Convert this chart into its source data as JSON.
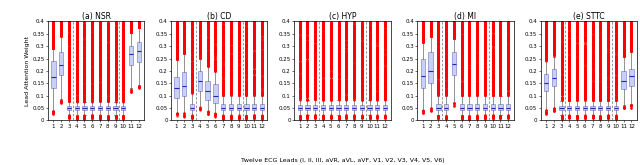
{
  "titles": [
    "(a) NSR",
    "(b) CD",
    "(c) HYP",
    "(d) MI",
    "(e) STTC"
  ],
  "ylabel": "Lead Attention Weight",
  "xlabel": "Twelve ECG Leads (I, II, III, aVR, aVL, aVF, V1, V2, V3, V4, V5, V6)",
  "ylim": [
    0,
    0.4
  ],
  "yticks": [
    0,
    0.05,
    0.1,
    0.15,
    0.2,
    0.25,
    0.3,
    0.35,
    0.4
  ],
  "n_leads": 12,
  "dashed_leads": [
    3,
    9
  ],
  "panels": {
    "NSR": {
      "med": [
        0.175,
        0.225,
        0.052,
        0.052,
        0.052,
        0.052,
        0.052,
        0.052,
        0.052,
        0.052,
        0.27,
        0.28
      ],
      "q1": [
        0.13,
        0.185,
        0.042,
        0.042,
        0.042,
        0.042,
        0.042,
        0.042,
        0.042,
        0.042,
        0.225,
        0.235
      ],
      "q3": [
        0.24,
        0.275,
        0.06,
        0.06,
        0.06,
        0.06,
        0.06,
        0.06,
        0.06,
        0.06,
        0.3,
        0.315
      ],
      "whislo": [
        0.04,
        0.085,
        0.022,
        0.022,
        0.022,
        0.022,
        0.022,
        0.022,
        0.022,
        0.022,
        0.13,
        0.145
      ],
      "whishi": [
        0.29,
        0.34,
        0.075,
        0.075,
        0.075,
        0.075,
        0.075,
        0.075,
        0.075,
        0.075,
        0.355,
        0.375
      ],
      "outlier_density": [
        0.6,
        0.5,
        0.9,
        0.9,
        0.9,
        0.9,
        0.9,
        0.9,
        0.9,
        0.9,
        0.4,
        0.4
      ]
    },
    "CD": {
      "med": [
        0.13,
        0.14,
        0.052,
        0.16,
        0.12,
        0.1,
        0.052,
        0.052,
        0.052,
        0.052,
        0.052,
        0.052
      ],
      "q1": [
        0.09,
        0.1,
        0.042,
        0.12,
        0.082,
        0.072,
        0.042,
        0.042,
        0.042,
        0.042,
        0.042,
        0.042
      ],
      "q3": [
        0.175,
        0.195,
        0.068,
        0.2,
        0.158,
        0.148,
        0.068,
        0.068,
        0.068,
        0.068,
        0.068,
        0.068
      ],
      "whislo": [
        0.03,
        0.03,
        0.022,
        0.055,
        0.038,
        0.03,
        0.022,
        0.022,
        0.022,
        0.022,
        0.022,
        0.022
      ],
      "whishi": [
        0.245,
        0.27,
        0.11,
        0.25,
        0.218,
        0.198,
        0.1,
        0.1,
        0.1,
        0.1,
        0.1,
        0.1
      ],
      "outlier_density": [
        0.5,
        0.5,
        0.8,
        0.4,
        0.5,
        0.5,
        0.8,
        0.8,
        0.8,
        0.8,
        0.8,
        0.8
      ]
    },
    "HYP": {
      "med": [
        0.052,
        0.052,
        0.052,
        0.052,
        0.052,
        0.052,
        0.052,
        0.052,
        0.052,
        0.052,
        0.052,
        0.052
      ],
      "q1": [
        0.042,
        0.042,
        0.042,
        0.042,
        0.042,
        0.042,
        0.042,
        0.042,
        0.042,
        0.042,
        0.042,
        0.042
      ],
      "q3": [
        0.062,
        0.062,
        0.062,
        0.062,
        0.062,
        0.062,
        0.062,
        0.062,
        0.062,
        0.062,
        0.062,
        0.062
      ],
      "whislo": [
        0.022,
        0.022,
        0.022,
        0.022,
        0.022,
        0.022,
        0.022,
        0.022,
        0.022,
        0.022,
        0.022,
        0.022
      ],
      "whishi": [
        0.082,
        0.082,
        0.082,
        0.082,
        0.082,
        0.082,
        0.082,
        0.082,
        0.082,
        0.082,
        0.082,
        0.082
      ],
      "outlier_density": [
        0.9,
        0.9,
        0.9,
        0.9,
        0.9,
        0.9,
        0.9,
        0.9,
        0.9,
        0.9,
        0.9,
        0.9
      ]
    },
    "MI": {
      "med": [
        0.18,
        0.2,
        0.052,
        0.052,
        0.23,
        0.052,
        0.052,
        0.052,
        0.052,
        0.052,
        0.052,
        0.052
      ],
      "q1": [
        0.13,
        0.15,
        0.042,
        0.042,
        0.185,
        0.042,
        0.042,
        0.042,
        0.042,
        0.042,
        0.042,
        0.042
      ],
      "q3": [
        0.248,
        0.278,
        0.068,
        0.068,
        0.278,
        0.068,
        0.068,
        0.068,
        0.068,
        0.068,
        0.068,
        0.068
      ],
      "whislo": [
        0.042,
        0.052,
        0.022,
        0.022,
        0.072,
        0.022,
        0.022,
        0.022,
        0.022,
        0.022,
        0.022,
        0.022
      ],
      "whishi": [
        0.315,
        0.338,
        0.1,
        0.1,
        0.33,
        0.1,
        0.1,
        0.1,
        0.1,
        0.1,
        0.1,
        0.1
      ],
      "outlier_density": [
        0.5,
        0.4,
        0.9,
        0.9,
        0.4,
        0.9,
        0.9,
        0.9,
        0.9,
        0.9,
        0.9,
        0.9
      ]
    },
    "STTC": {
      "med": [
        0.15,
        0.17,
        0.052,
        0.052,
        0.052,
        0.052,
        0.052,
        0.052,
        0.052,
        0.052,
        0.158,
        0.178
      ],
      "q1": [
        0.12,
        0.138,
        0.042,
        0.042,
        0.042,
        0.042,
        0.042,
        0.042,
        0.042,
        0.042,
        0.128,
        0.138
      ],
      "q3": [
        0.188,
        0.208,
        0.06,
        0.06,
        0.06,
        0.06,
        0.06,
        0.06,
        0.06,
        0.06,
        0.198,
        0.208
      ],
      "whislo": [
        0.042,
        0.052,
        0.022,
        0.022,
        0.022,
        0.022,
        0.022,
        0.022,
        0.022,
        0.022,
        0.062,
        0.065
      ],
      "whishi": [
        0.24,
        0.258,
        0.08,
        0.08,
        0.08,
        0.08,
        0.08,
        0.08,
        0.08,
        0.08,
        0.258,
        0.278
      ],
      "outlier_density": [
        0.6,
        0.5,
        0.9,
        0.9,
        0.9,
        0.9,
        0.9,
        0.9,
        0.9,
        0.9,
        0.5,
        0.5
      ]
    }
  }
}
